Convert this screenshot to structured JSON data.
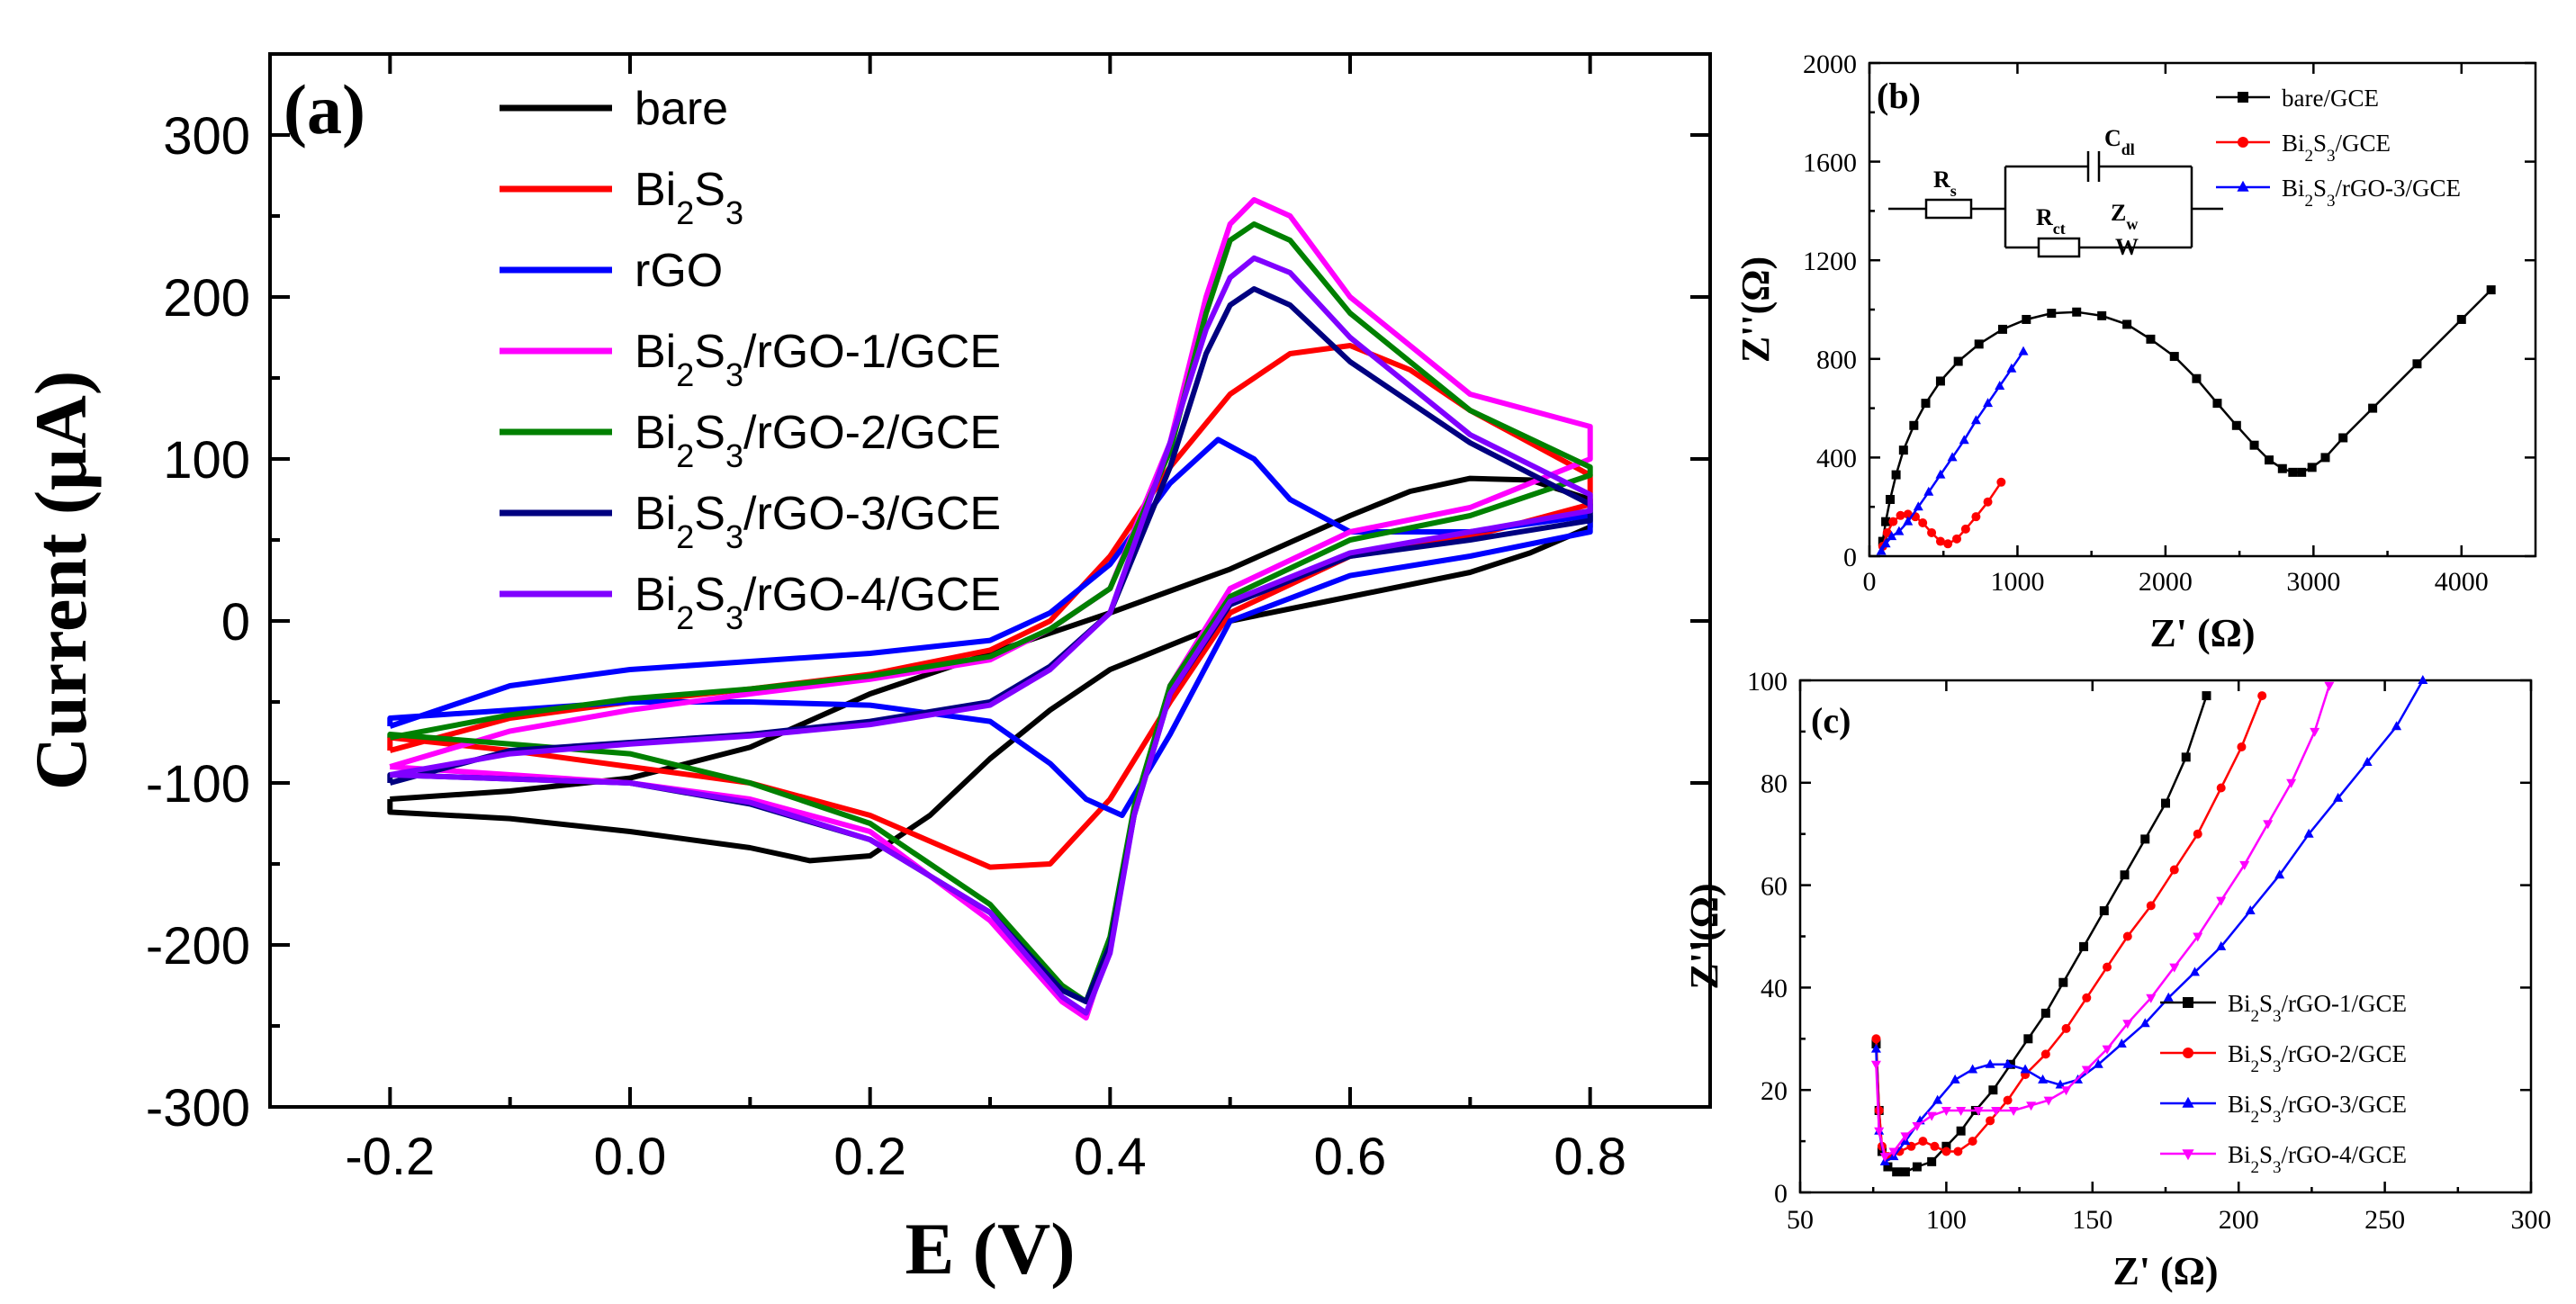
{
  "chart_data": [
    {
      "id": "a",
      "type": "line",
      "panel_label": "(a)",
      "xlabel": "E (V)",
      "ylabel": "Current (μA)",
      "xlim": [
        -0.3,
        0.9
      ],
      "ylim": [
        -300,
        350
      ],
      "xticks": [
        "-0.2",
        "0.0",
        "0.2",
        "0.4",
        "0.6",
        "0.8"
      ],
      "xtick_values": [
        -0.2,
        0.0,
        0.2,
        0.4,
        0.6,
        0.8
      ],
      "yticks": [
        "300",
        "200",
        "100",
        "0",
        "-100",
        "-200",
        "-300"
      ],
      "ytick_values": [
        300,
        200,
        100,
        0,
        -100,
        -200,
        -300
      ],
      "legend_position": "top-left",
      "series": [
        {
          "name": "bare",
          "sub": "",
          "color": "#000000",
          "x": [
            -0.2,
            -0.1,
            0.0,
            0.1,
            0.2,
            0.3,
            0.4,
            0.5,
            0.6,
            0.65,
            0.7,
            0.75,
            0.8,
            0.8,
            0.75,
            0.7,
            0.6,
            0.5,
            0.4,
            0.35,
            0.3,
            0.25,
            0.2,
            0.15,
            0.1,
            0.0,
            -0.1,
            -0.2
          ],
          "y": [
            -110,
            -105,
            -97,
            -78,
            -45,
            -20,
            5,
            32,
            65,
            80,
            88,
            87,
            75,
            58,
            42,
            30,
            15,
            0,
            -30,
            -55,
            -85,
            -120,
            -145,
            -148,
            -140,
            -130,
            -122,
            -118
          ]
        },
        {
          "name": "Bi",
          "sub": "2S3",
          "color": "#ff0000",
          "x": [
            -0.2,
            -0.1,
            0.0,
            0.1,
            0.2,
            0.3,
            0.35,
            0.4,
            0.45,
            0.5,
            0.55,
            0.6,
            0.65,
            0.7,
            0.8,
            0.8,
            0.7,
            0.6,
            0.5,
            0.45,
            0.4,
            0.35,
            0.3,
            0.2,
            0.1,
            0.0,
            -0.1,
            -0.2
          ],
          "y": [
            -80,
            -60,
            -50,
            -42,
            -33,
            -18,
            0,
            40,
            95,
            140,
            165,
            170,
            155,
            130,
            90,
            72,
            52,
            40,
            5,
            -50,
            -110,
            -150,
            -152,
            -120,
            -100,
            -90,
            -80,
            -72
          ]
        },
        {
          "name": "rGO",
          "sub": "",
          "color": "#0000ff",
          "x": [
            -0.2,
            -0.1,
            0.0,
            0.1,
            0.2,
            0.3,
            0.35,
            0.4,
            0.45,
            0.49,
            0.52,
            0.55,
            0.6,
            0.7,
            0.8,
            0.8,
            0.7,
            0.6,
            0.5,
            0.45,
            0.41,
            0.38,
            0.35,
            0.3,
            0.2,
            0.1,
            0.0,
            -0.2
          ],
          "y": [
            -65,
            -40,
            -30,
            -25,
            -20,
            -12,
            5,
            35,
            85,
            112,
            100,
            75,
            55,
            55,
            65,
            55,
            40,
            28,
            0,
            -70,
            -120,
            -110,
            -88,
            -62,
            -52,
            -50,
            -50,
            -60
          ]
        },
        {
          "name": "Bi",
          "sub": "2S3/rGO-1/GCE",
          "color": "#ff00ff",
          "x": [
            -0.2,
            -0.1,
            0.0,
            0.1,
            0.2,
            0.3,
            0.35,
            0.4,
            0.45,
            0.48,
            0.5,
            0.52,
            0.55,
            0.6,
            0.7,
            0.8,
            0.8,
            0.7,
            0.6,
            0.5,
            0.45,
            0.42,
            0.4,
            0.38,
            0.36,
            0.3,
            0.2,
            0.1,
            0.0,
            -0.2
          ],
          "y": [
            -90,
            -68,
            -55,
            -45,
            -36,
            -24,
            -5,
            20,
            110,
            200,
            245,
            260,
            250,
            200,
            140,
            120,
            100,
            70,
            55,
            20,
            -40,
            -120,
            -200,
            -245,
            -235,
            -185,
            -130,
            -110,
            -100,
            -90
          ]
        },
        {
          "name": "Bi",
          "sub": "2S3/rGO-2/GCE",
          "color": "#008000",
          "x": [
            -0.2,
            -0.1,
            0.0,
            0.1,
            0.2,
            0.3,
            0.35,
            0.4,
            0.45,
            0.48,
            0.5,
            0.52,
            0.55,
            0.6,
            0.7,
            0.8,
            0.8,
            0.7,
            0.6,
            0.5,
            0.45,
            0.42,
            0.4,
            0.38,
            0.36,
            0.3,
            0.2,
            0.1,
            0.0,
            -0.2
          ],
          "y": [
            -72,
            -58,
            -48,
            -42,
            -34,
            -22,
            -5,
            20,
            105,
            190,
            235,
            245,
            235,
            190,
            130,
            95,
            90,
            65,
            50,
            15,
            -40,
            -115,
            -195,
            -235,
            -225,
            -175,
            -125,
            -100,
            -82,
            -70
          ]
        },
        {
          "name": "Bi",
          "sub": "2S3/rGO-3/GCE",
          "color": "#000080",
          "x": [
            -0.2,
            -0.1,
            0.0,
            0.1,
            0.2,
            0.3,
            0.35,
            0.4,
            0.45,
            0.48,
            0.5,
            0.52,
            0.55,
            0.6,
            0.7,
            0.8,
            0.8,
            0.7,
            0.6,
            0.5,
            0.45,
            0.42,
            0.4,
            0.38,
            0.36,
            0.3,
            0.2,
            0.1,
            0.0,
            -0.2
          ],
          "y": [
            -100,
            -80,
            -75,
            -70,
            -62,
            -50,
            -28,
            5,
            95,
            165,
            195,
            205,
            195,
            160,
            110,
            72,
            62,
            50,
            40,
            10,
            -45,
            -120,
            -200,
            -235,
            -228,
            -180,
            -135,
            -113,
            -100,
            -95
          ]
        },
        {
          "name": "Bi",
          "sub": "2S3/rGO-4/GCE",
          "color": "#8000ff",
          "x": [
            -0.2,
            -0.1,
            0.0,
            0.1,
            0.2,
            0.3,
            0.35,
            0.4,
            0.45,
            0.48,
            0.5,
            0.52,
            0.55,
            0.6,
            0.7,
            0.8,
            0.8,
            0.7,
            0.6,
            0.5,
            0.45,
            0.42,
            0.4,
            0.38,
            0.36,
            0.3,
            0.2,
            0.1,
            0.0,
            -0.2
          ],
          "y": [
            -95,
            -82,
            -76,
            -71,
            -64,
            -52,
            -30,
            5,
            110,
            180,
            212,
            224,
            215,
            175,
            115,
            78,
            68,
            55,
            42,
            12,
            -45,
            -120,
            -205,
            -242,
            -232,
            -180,
            -135,
            -112,
            -100,
            -95
          ]
        }
      ]
    },
    {
      "id": "b",
      "type": "scatter",
      "panel_label": "(b)",
      "xlabel": "Z' (Ω)",
      "ylabel": "Z''(Ω)",
      "xlim": [
        0,
        4500
      ],
      "ylim": [
        0,
        2000
      ],
      "xticks": [
        "0",
        "1000",
        "2000",
        "3000",
        "4000"
      ],
      "xtick_values": [
        0,
        1000,
        2000,
        3000,
        4000
      ],
      "yticks": [
        "2000",
        "1600",
        "1200",
        "800",
        "400",
        "0"
      ],
      "ytick_values": [
        2000,
        1600,
        1200,
        800,
        400,
        0
      ],
      "legend_position": "top-right",
      "circuit": {
        "rs": "R",
        "rs_sub": "s",
        "rct": "R",
        "rct_sub": "ct",
        "cdl": "C",
        "cdl_sub": "dl",
        "zw": "Z",
        "zw_sub": "w",
        "w": "W"
      },
      "series": [
        {
          "name": "bare/GCE",
          "color": "#000000",
          "marker": "square",
          "x": [
            90,
            110,
            140,
            180,
            230,
            300,
            380,
            480,
            600,
            740,
            900,
            1060,
            1230,
            1400,
            1570,
            1740,
            1900,
            2060,
            2210,
            2350,
            2480,
            2600,
            2700,
            2790,
            2860,
            2920,
            2990,
            3080,
            3200,
            3400,
            3700,
            4000,
            4200
          ],
          "y": [
            60,
            140,
            230,
            330,
            430,
            530,
            620,
            710,
            790,
            860,
            920,
            960,
            985,
            990,
            975,
            940,
            880,
            810,
            720,
            620,
            530,
            450,
            390,
            355,
            340,
            340,
            360,
            400,
            480,
            600,
            780,
            960,
            1080
          ]
        },
        {
          "name": "Bi",
          "sub": "2S3/GCE",
          "color": "#ff0000",
          "marker": "circle",
          "x": [
            90,
            120,
            160,
            210,
            260,
            310,
            360,
            420,
            480,
            530,
            590,
            650,
            720,
            800,
            890
          ],
          "y": [
            40,
            95,
            140,
            165,
            170,
            160,
            135,
            95,
            60,
            50,
            70,
            110,
            160,
            220,
            300
          ]
        },
        {
          "name": "Bi",
          "sub": "2S3/rGO-3/GCE",
          "color": "#0000ff",
          "marker": "triangle",
          "x": [
            80,
            110,
            150,
            200,
            260,
            330,
            400,
            480,
            560,
            640,
            720,
            800,
            880,
            960,
            1040
          ],
          "y": [
            20,
            50,
            80,
            100,
            140,
            200,
            260,
            330,
            400,
            470,
            550,
            620,
            690,
            760,
            830
          ]
        }
      ]
    },
    {
      "id": "c",
      "type": "scatter",
      "panel_label": "(c)",
      "xlabel": "Z' (Ω)",
      "ylabel": "Z''(Ω)",
      "xlim": [
        50,
        300
      ],
      "ylim": [
        0,
        100
      ],
      "xticks": [
        "50",
        "100",
        "150",
        "200",
        "250",
        "300"
      ],
      "xtick_values": [
        50,
        100,
        150,
        200,
        250,
        300
      ],
      "yticks": [
        "100",
        "80",
        "60",
        "40",
        "20",
        "0"
      ],
      "ytick_values": [
        100,
        80,
        60,
        40,
        20,
        0
      ],
      "legend_position": "bottom-right",
      "series": [
        {
          "name": "Bi",
          "sub": "2S3/rGO-1/GCE",
          "color": "#000000",
          "marker": "square",
          "x": [
            76,
            77,
            78,
            80,
            83,
            86,
            90,
            95,
            100,
            105,
            110,
            116,
            122,
            128,
            134,
            140,
            147,
            154,
            161,
            168,
            175,
            182,
            189
          ],
          "y": [
            29,
            16,
            8,
            5,
            4,
            4,
            5,
            6,
            9,
            12,
            16,
            20,
            25,
            30,
            35,
            41,
            48,
            55,
            62,
            69,
            76,
            85,
            97
          ]
        },
        {
          "name": "Bi",
          "sub": "2S3/rGO-2/GCE",
          "color": "#ff0000",
          "marker": "circle",
          "x": [
            76,
            77,
            78,
            80,
            84,
            88,
            92,
            96,
            100,
            104,
            109,
            115,
            121,
            127,
            134,
            141,
            148,
            155,
            162,
            170,
            178,
            186,
            194,
            201,
            208
          ],
          "y": [
            30,
            16,
            9,
            7,
            8,
            9,
            10,
            9,
            8,
            8,
            10,
            14,
            18,
            23,
            27,
            32,
            38,
            44,
            50,
            56,
            63,
            70,
            79,
            87,
            97
          ]
        },
        {
          "name": "Bi",
          "sub": "2S3/rGO-3/GCE",
          "color": "#0000ff",
          "marker": "triangle",
          "x": [
            76,
            77,
            79,
            82,
            86,
            91,
            97,
            103,
            109,
            115,
            121,
            127,
            133,
            139,
            145,
            152,
            160,
            168,
            176,
            185,
            194,
            204,
            214,
            224,
            234,
            244,
            254,
            263
          ],
          "y": [
            28,
            12,
            6,
            7,
            10,
            14,
            18,
            22,
            24,
            25,
            25,
            24,
            22,
            21,
            22,
            25,
            29,
            33,
            38,
            43,
            48,
            55,
            62,
            70,
            77,
            84,
            91,
            100
          ]
        },
        {
          "name": "Bi",
          "sub": "2S3/rGO-4/GCE",
          "color": "#ff00ff",
          "marker": "triangle-down",
          "x": [
            76,
            77,
            79,
            82,
            86,
            90,
            95,
            100,
            105,
            111,
            117,
            123,
            129,
            135,
            141,
            148,
            155,
            162,
            170,
            178,
            186,
            194,
            202,
            210,
            218,
            226,
            231
          ],
          "y": [
            25,
            12,
            7,
            8,
            11,
            13,
            15,
            16,
            16,
            16,
            16,
            16,
            17,
            18,
            20,
            24,
            28,
            33,
            38,
            44,
            50,
            57,
            64,
            72,
            80,
            90,
            99
          ]
        }
      ]
    }
  ]
}
